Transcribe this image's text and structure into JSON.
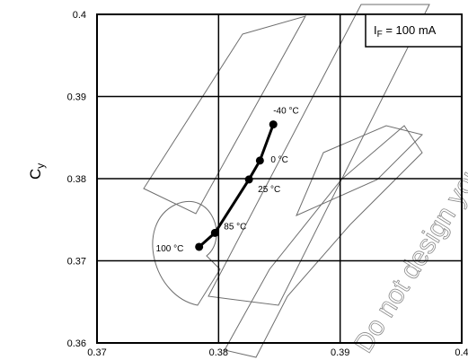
{
  "chart_data": {
    "type": "line",
    "title": "",
    "xlabel": "",
    "ylabel": "Cy",
    "xlim": [
      0.37,
      0.4
    ],
    "ylim": [
      0.36,
      0.4
    ],
    "x_ticks": [
      "0.37",
      "0.38",
      "0.39",
      "0.4"
    ],
    "y_ticks": [
      "0.36",
      "0.37",
      "0.38",
      "0.39",
      "0.4"
    ],
    "grid": true,
    "legend": {
      "text": "IF = 100 mA",
      "placement": "top-right"
    },
    "series": [
      {
        "points": [
          {
            "x": 0.3784,
            "y": 0.3717,
            "label": "100 °C"
          },
          {
            "x": 0.3797,
            "y": 0.3734,
            "label": "85 °C"
          },
          {
            "x": 0.3825,
            "y": 0.3799,
            "label": "25 °C"
          },
          {
            "x": 0.3834,
            "y": 0.3822,
            "label": "0 °C"
          },
          {
            "x": 0.3845,
            "y": 0.3866,
            "label": "-40 °C"
          }
        ]
      }
    ]
  },
  "watermark": {
    "text": "Do not design your... please contact"
  }
}
